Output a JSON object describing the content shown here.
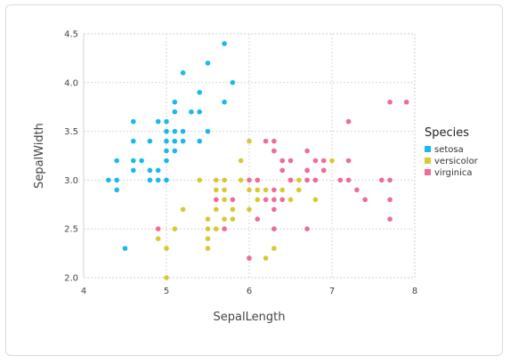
{
  "chart_data": {
    "type": "scatter",
    "xlabel": "SepalLength",
    "ylabel": "SepalWidth",
    "xlim": [
      4,
      8
    ],
    "ylim": [
      2.0,
      4.5
    ],
    "x_ticks": [
      "4",
      "5",
      "6",
      "7",
      "8"
    ],
    "y_ticks": [
      "2.0",
      "2.5",
      "3.0",
      "3.5",
      "4.0",
      "4.5"
    ],
    "grid": true,
    "legend": {
      "title": "Species",
      "placement": "right"
    },
    "series": [
      {
        "name": "setosa",
        "color": "#1ab8ee",
        "points": [
          [
            4.3,
            3.0
          ],
          [
            4.4,
            2.9
          ],
          [
            4.4,
            3.0
          ],
          [
            4.4,
            3.2
          ],
          [
            4.5,
            2.3
          ],
          [
            4.6,
            3.1
          ],
          [
            4.6,
            3.2
          ],
          [
            4.6,
            3.4
          ],
          [
            4.6,
            3.6
          ],
          [
            4.7,
            3.2
          ],
          [
            4.8,
            3.0
          ],
          [
            4.8,
            3.1
          ],
          [
            4.8,
            3.4
          ],
          [
            4.9,
            3.0
          ],
          [
            4.9,
            3.1
          ],
          [
            4.9,
            3.6
          ],
          [
            5.0,
            3.0
          ],
          [
            5.0,
            3.2
          ],
          [
            5.0,
            3.3
          ],
          [
            5.0,
            3.4
          ],
          [
            5.0,
            3.5
          ],
          [
            5.0,
            3.6
          ],
          [
            5.1,
            3.3
          ],
          [
            5.1,
            3.4
          ],
          [
            5.1,
            3.5
          ],
          [
            5.1,
            3.7
          ],
          [
            5.1,
            3.8
          ],
          [
            5.2,
            3.4
          ],
          [
            5.2,
            3.5
          ],
          [
            5.2,
            4.1
          ],
          [
            5.3,
            3.7
          ],
          [
            5.4,
            3.4
          ],
          [
            5.4,
            3.7
          ],
          [
            5.4,
            3.9
          ],
          [
            5.5,
            3.5
          ],
          [
            5.5,
            4.2
          ],
          [
            5.7,
            3.8
          ],
          [
            5.7,
            4.4
          ],
          [
            5.8,
            4.0
          ]
        ]
      },
      {
        "name": "versicolor",
        "color": "#d8c832",
        "points": [
          [
            4.9,
            2.4
          ],
          [
            5.0,
            2.0
          ],
          [
            5.0,
            2.3
          ],
          [
            5.1,
            2.5
          ],
          [
            5.2,
            2.7
          ],
          [
            5.4,
            3.0
          ],
          [
            5.5,
            2.3
          ],
          [
            5.5,
            2.4
          ],
          [
            5.5,
            2.5
          ],
          [
            5.5,
            2.6
          ],
          [
            5.6,
            2.5
          ],
          [
            5.6,
            2.7
          ],
          [
            5.6,
            2.9
          ],
          [
            5.6,
            3.0
          ],
          [
            5.7,
            2.6
          ],
          [
            5.7,
            2.8
          ],
          [
            5.7,
            2.9
          ],
          [
            5.7,
            3.0
          ],
          [
            5.8,
            2.6
          ],
          [
            5.8,
            2.7
          ],
          [
            5.9,
            3.0
          ],
          [
            5.9,
            3.2
          ],
          [
            6.0,
            2.2
          ],
          [
            6.0,
            2.7
          ],
          [
            6.0,
            2.9
          ],
          [
            6.0,
            3.4
          ],
          [
            6.1,
            2.8
          ],
          [
            6.1,
            2.9
          ],
          [
            6.1,
            3.0
          ],
          [
            6.2,
            2.2
          ],
          [
            6.2,
            2.9
          ],
          [
            6.3,
            2.3
          ],
          [
            6.3,
            2.5
          ],
          [
            6.3,
            3.3
          ],
          [
            6.4,
            2.9
          ],
          [
            6.4,
            3.2
          ],
          [
            6.5,
            2.8
          ],
          [
            6.6,
            2.9
          ],
          [
            6.6,
            3.0
          ],
          [
            6.7,
            3.0
          ],
          [
            6.7,
            3.1
          ],
          [
            6.8,
            2.8
          ],
          [
            6.9,
            3.1
          ],
          [
            7.0,
            3.2
          ]
        ]
      },
      {
        "name": "virginica",
        "color": "#ee6b9a",
        "points": [
          [
            4.9,
            2.5
          ],
          [
            5.6,
            2.8
          ],
          [
            5.7,
            2.5
          ],
          [
            5.8,
            2.8
          ],
          [
            6.0,
            2.2
          ],
          [
            6.0,
            3.0
          ],
          [
            6.1,
            2.6
          ],
          [
            6.1,
            3.0
          ],
          [
            6.2,
            2.8
          ],
          [
            6.2,
            3.4
          ],
          [
            6.3,
            2.5
          ],
          [
            6.3,
            2.7
          ],
          [
            6.3,
            2.8
          ],
          [
            6.3,
            2.9
          ],
          [
            6.3,
            3.3
          ],
          [
            6.3,
            3.4
          ],
          [
            6.4,
            2.8
          ],
          [
            6.4,
            3.1
          ],
          [
            6.4,
            3.2
          ],
          [
            6.5,
            3.0
          ],
          [
            6.5,
            3.2
          ],
          [
            6.7,
            2.5
          ],
          [
            6.7,
            3.0
          ],
          [
            6.7,
            3.1
          ],
          [
            6.7,
            3.3
          ],
          [
            6.8,
            3.0
          ],
          [
            6.8,
            3.2
          ],
          [
            6.9,
            3.1
          ],
          [
            6.9,
            3.2
          ],
          [
            7.1,
            3.0
          ],
          [
            7.2,
            3.0
          ],
          [
            7.2,
            3.2
          ],
          [
            7.2,
            3.6
          ],
          [
            7.3,
            2.9
          ],
          [
            7.4,
            2.8
          ],
          [
            7.6,
            3.0
          ],
          [
            7.7,
            2.6
          ],
          [
            7.7,
            2.8
          ],
          [
            7.7,
            3.0
          ],
          [
            7.7,
            3.8
          ],
          [
            7.9,
            3.8
          ],
          [
            6.5,
            3.0
          ],
          [
            6.8,
            3.0
          ]
        ]
      }
    ]
  }
}
